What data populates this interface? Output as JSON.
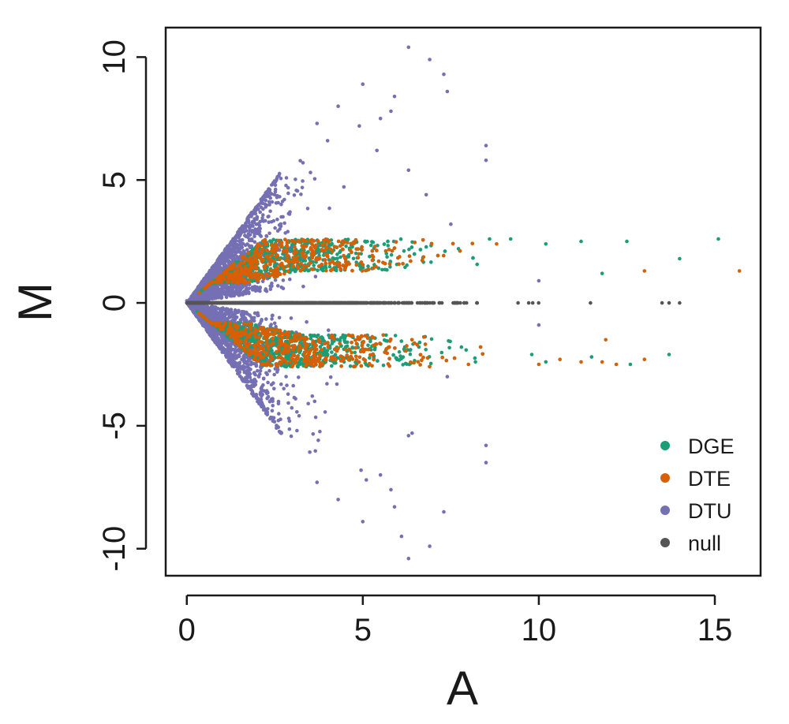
{
  "chart_data": {
    "type": "scatter",
    "title": "",
    "xlabel": "A",
    "ylabel": "M",
    "xlim": [
      -0.6,
      16.3
    ],
    "ylim": [
      -11.1,
      11.2
    ],
    "xticks": [
      0,
      5,
      10,
      15
    ],
    "yticks": [
      -10,
      -5,
      0,
      5,
      10
    ],
    "grid": false,
    "legend_position": "bottom-right",
    "colors": {
      "DGE": "#1b9e77",
      "DTE": "#d95f02",
      "DTU": "#7570b3",
      "null": "#555555"
    },
    "series": [
      {
        "name": "DGE",
        "color": "#1b9e77"
      },
      {
        "name": "DTE",
        "color": "#d95f02"
      },
      {
        "name": "DTU",
        "color": "#7570b3"
      },
      {
        "name": "null",
        "color": "#555555"
      }
    ],
    "points": {
      "DTU": [
        [
          6.3,
          10.4
        ],
        [
          6.9,
          9.9
        ],
        [
          5.0,
          8.9
        ],
        [
          7.3,
          9.3
        ],
        [
          5.9,
          8.4
        ],
        [
          4.3,
          8.0
        ],
        [
          7.4,
          8.6
        ],
        [
          3.7,
          7.3
        ],
        [
          5.5,
          7.5
        ],
        [
          4.9,
          7.2
        ],
        [
          5.8,
          7.8
        ],
        [
          8.5,
          6.4
        ],
        [
          8.5,
          5.8
        ],
        [
          6.3,
          5.4
        ],
        [
          6.8,
          4.4
        ],
        [
          5.4,
          6.2
        ],
        [
          4.0,
          6.6
        ],
        [
          3.3,
          5.7
        ],
        [
          6.3,
          -10.4
        ],
        [
          6.9,
          -9.9
        ],
        [
          6.1,
          -9.5
        ],
        [
          5.0,
          -8.9
        ],
        [
          7.3,
          -8.5
        ],
        [
          5.9,
          -8.3
        ],
        [
          4.3,
          -8.0
        ],
        [
          5.8,
          -7.6
        ],
        [
          3.7,
          -7.3
        ],
        [
          5.5,
          -7.0
        ],
        [
          5.1,
          -7.2
        ],
        [
          8.5,
          -6.5
        ],
        [
          8.5,
          -5.8
        ],
        [
          6.3,
          -5.4
        ],
        [
          6.4,
          -5.3
        ],
        [
          10.0,
          0.9
        ],
        [
          10.0,
          -0.9
        ],
        [
          7.5,
          3.2
        ],
        [
          7.4,
          -3.0
        ]
      ],
      "DGE": [
        [
          15.1,
          2.6
        ],
        [
          14.0,
          1.8
        ],
        [
          12.5,
          2.5
        ],
        [
          11.2,
          2.5
        ],
        [
          11.8,
          1.2
        ],
        [
          10.2,
          2.4
        ],
        [
          9.2,
          2.6
        ],
        [
          8.6,
          2.6
        ],
        [
          13.7,
          -2.1
        ],
        [
          12.6,
          -2.5
        ],
        [
          11.5,
          -2.2
        ],
        [
          10.2,
          -2.4
        ],
        [
          9.8,
          -2.1
        ],
        [
          8.2,
          -2.4
        ]
      ],
      "DTE": [
        [
          15.7,
          1.3
        ],
        [
          13.0,
          1.3
        ],
        [
          11.8,
          -2.4
        ],
        [
          12.2,
          -2.5
        ],
        [
          13.0,
          -2.3
        ],
        [
          11.9,
          -1.5
        ],
        [
          10.6,
          -2.3
        ],
        [
          11.2,
          -2.4
        ],
        [
          10.0,
          -2.5
        ],
        [
          8.8,
          2.4
        ],
        [
          8.0,
          -2.5
        ]
      ],
      "null": [
        [
          13.5,
          0
        ],
        [
          13.7,
          0
        ],
        [
          14.0,
          0
        ]
      ]
    }
  },
  "legend": {
    "items": [
      {
        "label": "DGE",
        "color": "#1b9e77"
      },
      {
        "label": "DTE",
        "color": "#d95f02"
      },
      {
        "label": "DTU",
        "color": "#7570b3"
      },
      {
        "label": "null",
        "color": "#555555"
      }
    ]
  }
}
